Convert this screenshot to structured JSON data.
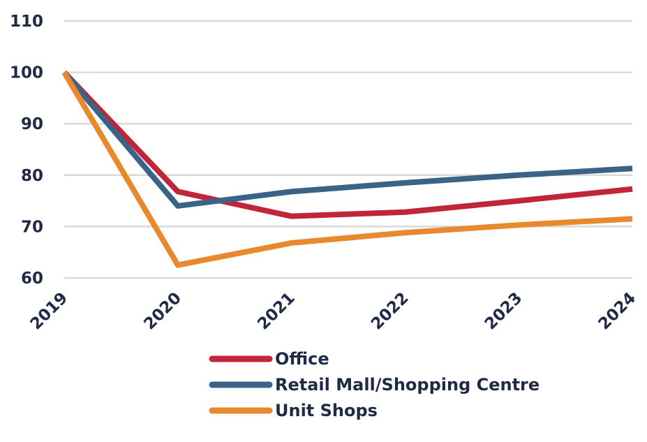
{
  "chart_data": {
    "type": "line",
    "title": "",
    "xlabel": "",
    "ylabel": "",
    "categories": [
      "2019",
      "2020",
      "2021",
      "2022",
      "2023",
      "2024"
    ],
    "ylim": [
      60,
      110
    ],
    "yticks": [
      "60",
      "70",
      "80",
      "90",
      "100",
      "110"
    ],
    "grid": true,
    "legend_position": "bottom",
    "series": [
      {
        "name": "Office",
        "color": "#c0253a",
        "values": [
          100,
          76.8,
          72,
          72.8,
          75,
          77.3
        ]
      },
      {
        "name": "Retail Mall/Shopping Centre",
        "color": "#3a6388",
        "values": [
          100,
          74,
          76.8,
          78.5,
          80,
          81.3
        ]
      },
      {
        "name": "Unit Shops",
        "color": "#e8892e",
        "values": [
          100,
          62.5,
          66.8,
          68.8,
          70.3,
          71.5
        ]
      }
    ]
  }
}
